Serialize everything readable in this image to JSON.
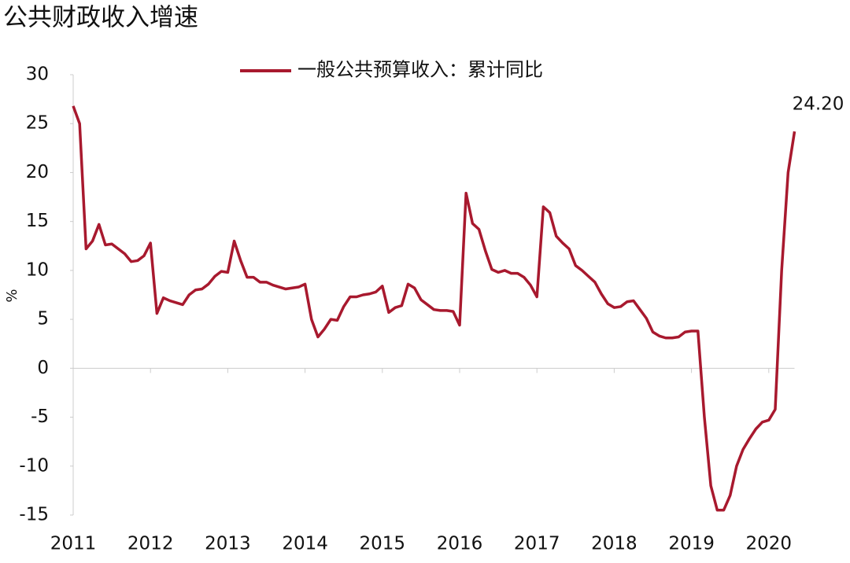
{
  "chart_data": {
    "type": "line",
    "title": "公共财政收入增速",
    "y_label": "%",
    "categories": [
      "2011",
      null,
      null,
      null,
      null,
      null,
      null,
      null,
      null,
      null,
      null,
      null,
      "2012",
      null,
      null,
      null,
      null,
      null,
      null,
      null,
      null,
      null,
      null,
      null,
      "2013",
      null,
      null,
      null,
      null,
      null,
      null,
      null,
      null,
      null,
      null,
      null,
      "2014",
      null,
      null,
      null,
      null,
      null,
      null,
      null,
      null,
      null,
      null,
      null,
      "2015",
      null,
      null,
      null,
      null,
      null,
      null,
      null,
      null,
      null,
      null,
      null,
      "2016",
      null,
      null,
      null,
      null,
      null,
      null,
      null,
      null,
      null,
      null,
      null,
      "2017",
      null,
      null,
      null,
      null,
      null,
      null,
      null,
      null,
      null,
      null,
      null,
      "2018",
      null,
      null,
      null,
      null,
      null,
      null,
      null,
      null,
      null,
      null,
      null,
      "2019",
      null,
      null,
      null,
      null,
      null,
      null,
      null,
      null,
      null,
      null,
      null,
      "2020",
      null,
      null,
      null,
      null
    ],
    "series": [
      {
        "name": "一般公共预算收入：累计同比",
        "color": "#a8192e",
        "values": [
          26.8,
          25,
          12.2,
          13,
          14.7,
          12.6,
          12.7,
          12.2,
          11.7,
          10.9,
          11,
          11.5,
          12.8,
          5.6,
          7.2,
          6.9,
          6.7,
          6.5,
          7.5,
          8,
          8.1,
          8.6,
          9.4,
          9.9,
          9.8,
          13,
          11,
          9.3,
          9.3,
          8.8,
          8.8,
          8.5,
          8.3,
          8.1,
          8.2,
          8.3,
          8.6,
          5,
          3.2,
          4,
          5,
          4.9,
          6.3,
          7.3,
          7.3,
          7.5,
          7.6,
          7.8,
          8.4,
          5.7,
          6.2,
          6.4,
          8.6,
          8.2,
          7,
          6.5,
          6,
          5.9,
          5.9,
          5.8,
          4.4,
          17.9,
          14.8,
          14.2,
          12,
          10.1,
          9.8,
          10,
          9.7,
          9.7,
          9.3,
          8.5,
          7.3,
          16.5,
          15.9,
          13.5,
          12.8,
          12.2,
          10.5,
          10,
          9.4,
          8.8,
          7.6,
          6.6,
          6.2,
          6.3,
          6.8,
          6.9,
          6,
          5.1,
          3.7,
          3.3,
          3.1,
          3.1,
          3.2,
          3.7,
          3.8,
          3.8,
          -5,
          -12,
          -14.5,
          -14.5,
          -13,
          -10,
          -8.3,
          -7.2,
          -6.2,
          -5.5,
          -5.3,
          -4.2,
          10,
          20,
          24.2
        ],
        "value_labels": [
          null,
          null,
          null,
          null,
          null,
          null,
          null,
          null,
          null,
          null,
          null,
          null,
          null,
          null,
          null,
          null,
          null,
          null,
          null,
          null,
          null,
          null,
          null,
          null,
          null,
          null,
          null,
          null,
          null,
          null,
          null,
          null,
          null,
          null,
          null,
          null,
          null,
          null,
          null,
          null,
          null,
          null,
          null,
          null,
          null,
          null,
          null,
          null,
          null,
          null,
          null,
          null,
          null,
          null,
          null,
          null,
          null,
          null,
          null,
          null,
          null,
          null,
          null,
          null,
          null,
          null,
          null,
          null,
          null,
          null,
          null,
          null,
          null,
          null,
          null,
          null,
          null,
          null,
          null,
          null,
          null,
          null,
          null,
          null,
          null,
          null,
          null,
          null,
          null,
          null,
          null,
          null,
          null,
          null,
          null,
          null,
          null,
          null,
          null,
          null,
          null,
          null,
          null,
          null,
          null,
          null,
          null,
          null,
          null,
          null,
          null,
          null,
          "24.20"
        ]
      }
    ],
    "ylim": [
      -15,
      30
    ],
    "yticks": [
      30,
      25,
      20,
      15,
      10,
      5,
      0,
      -5,
      -10,
      -15
    ],
    "legend": "top"
  }
}
